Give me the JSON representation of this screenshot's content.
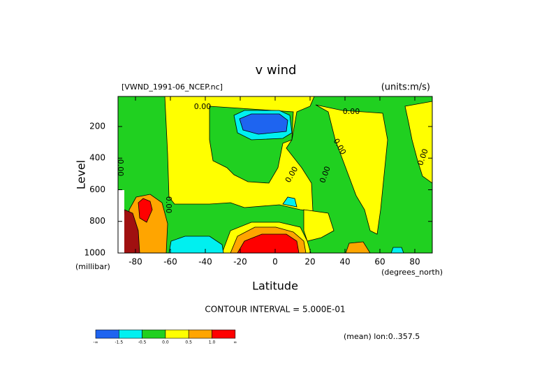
{
  "chart_data": {
    "type": "contour",
    "title": "v wind",
    "subtitle": "[VWND_1991-06_NCEP.nc]",
    "units": "(units:m/s)",
    "x_label": "Latitude",
    "x_units": "(degrees_north)",
    "y_label": "Level",
    "y_units": "(millibar)",
    "xlim": [
      -90,
      90
    ],
    "xticks": [
      -80,
      -60,
      -40,
      -20,
      0,
      20,
      40,
      60,
      80
    ],
    "ylim": [
      1000,
      10
    ],
    "yticks": [
      200,
      400,
      600,
      800,
      1000
    ],
    "contour_interval": "CONTOUR INTERVAL = 5.000E-01",
    "contour_labels": [
      "0.00",
      "0.00",
      "0.00",
      "0.00",
      "0.00",
      "0.00",
      "0.00",
      "0.00"
    ],
    "footer": "(mean) lon:0..357.5",
    "colorbar": {
      "colors": [
        "#1e64f0",
        "#00f0f0",
        "#20d020",
        "#ffff00",
        "#ffa500",
        "#ff0000"
      ],
      "labels": [
        "-∞",
        "-1.5",
        "-0.5",
        "0.0",
        "0.5",
        "1.0",
        "∞"
      ]
    }
  }
}
